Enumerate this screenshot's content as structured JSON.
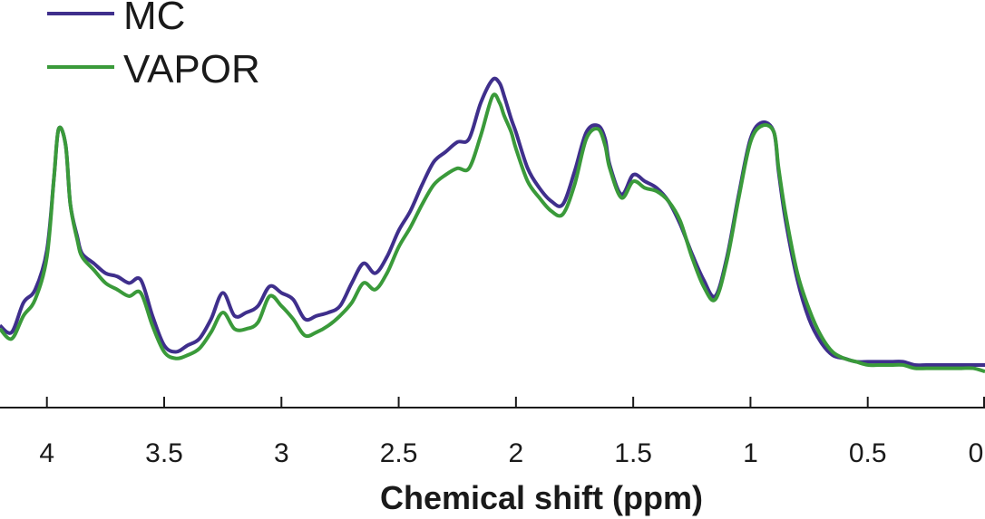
{
  "chart_data": {
    "type": "line",
    "xlabel": "Chemical shift (ppm)",
    "ylabel": "",
    "title": "",
    "x_reversed": true,
    "xlim": [
      4.2,
      0
    ],
    "ylim": [
      0,
      1.05
    ],
    "y_axis_visible": false,
    "grid": false,
    "legend_position": "top-left",
    "x_ticks": [
      4,
      3.5,
      3,
      2.5,
      2,
      1.5,
      1,
      0.5,
      0
    ],
    "x_tick_labels": [
      "4",
      "3.5",
      "3",
      "2.5",
      "2",
      "1.5",
      "1",
      "0.5",
      "0"
    ],
    "x": [
      4.2,
      4.15,
      4.1,
      4.05,
      4.0,
      3.97,
      3.95,
      3.92,
      3.9,
      3.87,
      3.85,
      3.8,
      3.75,
      3.7,
      3.65,
      3.6,
      3.55,
      3.5,
      3.45,
      3.4,
      3.35,
      3.3,
      3.25,
      3.2,
      3.15,
      3.1,
      3.05,
      3.0,
      2.95,
      2.9,
      2.85,
      2.8,
      2.75,
      2.7,
      2.65,
      2.6,
      2.55,
      2.5,
      2.45,
      2.4,
      2.35,
      2.3,
      2.25,
      2.2,
      2.15,
      2.1,
      2.07,
      2.05,
      2.02,
      2.0,
      1.95,
      1.9,
      1.85,
      1.8,
      1.75,
      1.7,
      1.65,
      1.62,
      1.6,
      1.55,
      1.5,
      1.45,
      1.4,
      1.35,
      1.3,
      1.25,
      1.2,
      1.15,
      1.1,
      1.05,
      1.0,
      0.95,
      0.9,
      0.88,
      0.85,
      0.8,
      0.75,
      0.7,
      0.65,
      0.6,
      0.55,
      0.5,
      0.45,
      0.4,
      0.35,
      0.3,
      0.25,
      0.2,
      0.15,
      0.1,
      0.05,
      0.0
    ],
    "series": [
      {
        "name": "MC",
        "color": "#3f2f8c",
        "values": [
          0.25,
          0.23,
          0.32,
          0.36,
          0.48,
          0.7,
          0.85,
          0.8,
          0.62,
          0.52,
          0.47,
          0.44,
          0.41,
          0.4,
          0.38,
          0.39,
          0.28,
          0.19,
          0.17,
          0.19,
          0.21,
          0.27,
          0.35,
          0.28,
          0.29,
          0.31,
          0.37,
          0.35,
          0.33,
          0.27,
          0.28,
          0.29,
          0.31,
          0.38,
          0.44,
          0.41,
          0.46,
          0.54,
          0.6,
          0.68,
          0.75,
          0.78,
          0.81,
          0.82,
          0.93,
          1.0,
          0.99,
          0.95,
          0.88,
          0.84,
          0.73,
          0.67,
          0.63,
          0.62,
          0.72,
          0.84,
          0.86,
          0.82,
          0.74,
          0.65,
          0.71,
          0.69,
          0.67,
          0.63,
          0.56,
          0.47,
          0.39,
          0.34,
          0.46,
          0.65,
          0.82,
          0.87,
          0.84,
          0.72,
          0.57,
          0.39,
          0.27,
          0.2,
          0.16,
          0.15,
          0.14,
          0.14,
          0.14,
          0.14,
          0.14,
          0.13,
          0.13,
          0.13,
          0.13,
          0.13,
          0.13,
          0.13
        ]
      },
      {
        "name": "VAPOR",
        "color": "#3a9a3a",
        "values": [
          0.24,
          0.21,
          0.28,
          0.33,
          0.46,
          0.7,
          0.85,
          0.8,
          0.62,
          0.51,
          0.46,
          0.42,
          0.38,
          0.36,
          0.34,
          0.35,
          0.25,
          0.17,
          0.15,
          0.16,
          0.18,
          0.23,
          0.29,
          0.24,
          0.24,
          0.26,
          0.34,
          0.31,
          0.27,
          0.22,
          0.23,
          0.25,
          0.28,
          0.32,
          0.38,
          0.36,
          0.41,
          0.49,
          0.55,
          0.62,
          0.68,
          0.71,
          0.73,
          0.73,
          0.83,
          0.95,
          0.93,
          0.89,
          0.84,
          0.79,
          0.69,
          0.64,
          0.6,
          0.59,
          0.68,
          0.82,
          0.85,
          0.8,
          0.73,
          0.64,
          0.69,
          0.67,
          0.66,
          0.63,
          0.57,
          0.46,
          0.37,
          0.33,
          0.45,
          0.64,
          0.81,
          0.86,
          0.84,
          0.73,
          0.59,
          0.41,
          0.3,
          0.22,
          0.17,
          0.15,
          0.14,
          0.13,
          0.13,
          0.13,
          0.13,
          0.12,
          0.12,
          0.12,
          0.12,
          0.12,
          0.12,
          0.11
        ]
      }
    ]
  }
}
